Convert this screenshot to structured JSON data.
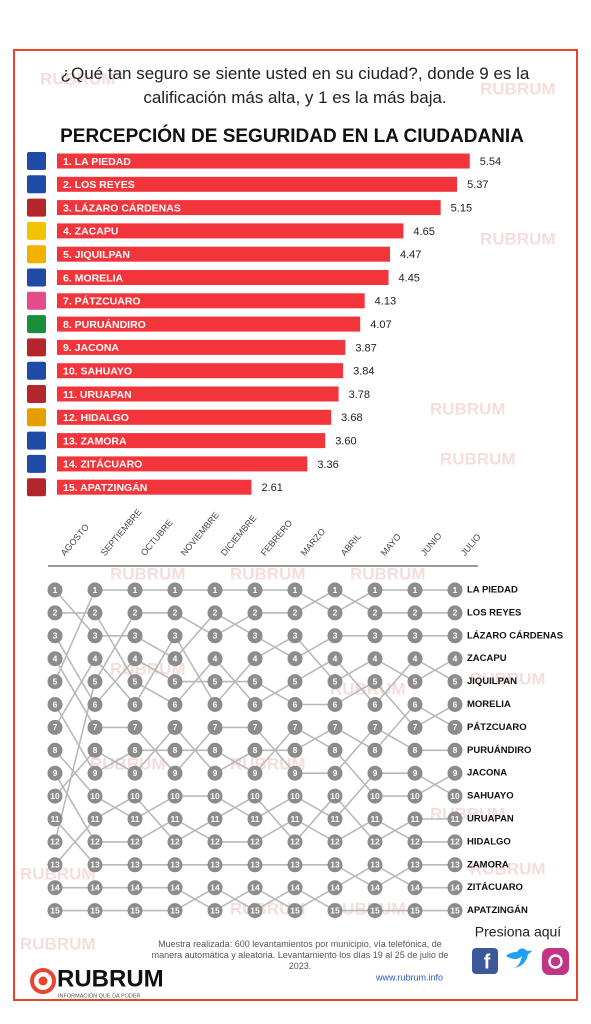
{
  "chart_data": [
    {
      "type": "bar",
      "question": "¿Qué tan seguro se siente usted en su ciudad?, donde 9 es la calificación más alta, y  1 es la más baja.",
      "title": "PERCEPCIÓN DE SEGURIDAD EN LA CIUDADANIA",
      "categories": [
        "1. LA PIEDAD",
        "2. LOS REYES",
        "3. LÁZARO CÁRDENAS",
        "4. ZACAPU",
        "5. JIQUILPAN",
        "6. MORELIA",
        "7. PÁTZCUARO",
        "8. PURUÁNDIRO",
        "9. JACONA",
        "10. SAHUAYO",
        "11. URUAPAN",
        "12. HIDALGO",
        "13. ZAMORA",
        "14. ZITÁCUARO",
        "15. APATZINGÁN"
      ],
      "values": [
        5.54,
        5.37,
        5.15,
        4.65,
        4.47,
        4.45,
        4.13,
        4.07,
        3.87,
        3.84,
        3.78,
        3.68,
        3.6,
        3.36,
        2.61
      ],
      "value_labels": [
        "5.54",
        "5.37",
        "5.15",
        "4.65",
        "4.47",
        "4.45",
        "4.13",
        "4.07",
        "3.87",
        "3.84",
        "3.78",
        "3.68",
        "3.60",
        "3.36",
        "2.61"
      ],
      "color": "#f2343b"
    },
    {
      "type": "bump",
      "x": [
        "AGOSTO",
        "SEPTIEMBRE",
        "OCTUBRE",
        "NOVIEMBRE",
        "DICIEMBRE",
        "FEBRERO",
        "MARZO",
        "ABRIL",
        "MAYO",
        "JUNIO",
        "JULIO"
      ],
      "ranks": [
        1,
        2,
        3,
        4,
        5,
        6,
        7,
        8,
        9,
        10,
        11,
        12,
        13,
        14,
        15
      ],
      "color": "#8c8c8c",
      "series": [
        {
          "name": "LA PIEDAD",
          "values": [
            5,
            1,
            1,
            1,
            1,
            1,
            1,
            2,
            1,
            1,
            1
          ]
        },
        {
          "name": "LOS REYES",
          "values": [
            12,
            5,
            2,
            2,
            3,
            2,
            2,
            1,
            2,
            2,
            2
          ]
        },
        {
          "name": "LÁZARO CÁRDENAS",
          "values": [
            1,
            3,
            3,
            4,
            2,
            3,
            4,
            3,
            3,
            3,
            3
          ]
        },
        {
          "name": "ZACAPU",
          "values": [
            7,
            4,
            6,
            3,
            6,
            4,
            3,
            5,
            4,
            5,
            4
          ]
        },
        {
          "name": "JIQUILPAN",
          "values": [
            2,
            2,
            5,
            6,
            4,
            6,
            5,
            4,
            6,
            4,
            5
          ]
        },
        {
          "name": "MORELIA",
          "values": [
            3,
            6,
            4,
            5,
            5,
            5,
            6,
            6,
            5,
            7,
            6
          ]
        },
        {
          "name": "PÁTZCUARO",
          "values": [
            10,
            8,
            9,
            7,
            9,
            8,
            8,
            7,
            8,
            6,
            7
          ]
        },
        {
          "name": "PURUÁNDIRO",
          "values": [
            4,
            7,
            7,
            9,
            7,
            7,
            9,
            9,
            7,
            8,
            8
          ]
        },
        {
          "name": "JACONA",
          "values": [
            6,
            9,
            8,
            8,
            8,
            9,
            7,
            8,
            10,
            10,
            9
          ]
        },
        {
          "name": "SAHUAYO",
          "values": [
            8,
            10,
            11,
            10,
            10,
            11,
            10,
            11,
            9,
            9,
            10
          ]
        },
        {
          "name": "URUAPAN",
          "values": [
            13,
            11,
            10,
            12,
            11,
            10,
            12,
            10,
            12,
            11,
            11
          ]
        },
        {
          "name": "HIDALGO",
          "values": [
            9,
            12,
            12,
            11,
            12,
            12,
            11,
            12,
            11,
            12,
            12
          ]
        },
        {
          "name": "ZAMORA",
          "values": [
            11,
            13,
            13,
            13,
            13,
            13,
            13,
            13,
            14,
            13,
            13
          ]
        },
        {
          "name": "ZITÁCUARO",
          "values": [
            14,
            14,
            14,
            14,
            15,
            14,
            15,
            14,
            13,
            14,
            14
          ]
        },
        {
          "name": "APATZINGÁN",
          "values": [
            15,
            15,
            15,
            15,
            14,
            15,
            14,
            15,
            15,
            15,
            15
          ]
        }
      ]
    }
  ],
  "footer": {
    "note": "Muestra realizada: 600 levantamientos por municipio, vía telefónica, de manera automática y aleatoria. Levantamiento los días 19 al 25 de julio de 2023.",
    "link": "www.rubrum.info",
    "cta": "Presiona aquí"
  },
  "brand": {
    "name": "RUBRUM",
    "tagline": "INFORMACIÓN QUE DA PODER"
  }
}
